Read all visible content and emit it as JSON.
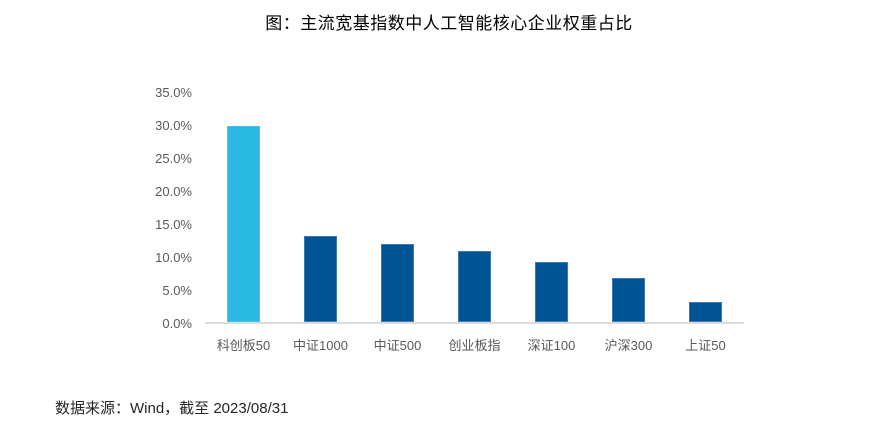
{
  "chart_data": {
    "type": "bar",
    "title": "图：主流宽基指数中人工智能核心企业权重占比",
    "categories": [
      "科创板50",
      "中证1000",
      "中证500",
      "创业板指",
      "深证100",
      "沪深300",
      "上证50"
    ],
    "values": [
      29.9,
      13.2,
      12.0,
      10.9,
      9.2,
      6.7,
      3.1
    ],
    "unit": "%",
    "xlabel": "",
    "ylabel": "",
    "ylim": [
      0,
      35
    ],
    "ytick_interval": 5,
    "ytick_labels_top_to_bottom": [
      "35.0%",
      "30.0%",
      "25.0%",
      "20.0%",
      "15.0%",
      "10.0%",
      "5.0%",
      "0.0%"
    ],
    "grid": false,
    "legend": false,
    "highlight_index": 0,
    "colors": {
      "highlight_bar": "#29B8E0",
      "highlight_bar_border": "#49C3E6",
      "default_bar": "#015493",
      "default_bar_border": "#3D79B3",
      "axis_line": "#DBDBDB",
      "tick_text": "#595959",
      "category_text": "#595959",
      "title_text": "#000000",
      "source_text": "#262626"
    }
  },
  "footer": {
    "source": "数据来源：Wind，截至 2023/08/31"
  }
}
